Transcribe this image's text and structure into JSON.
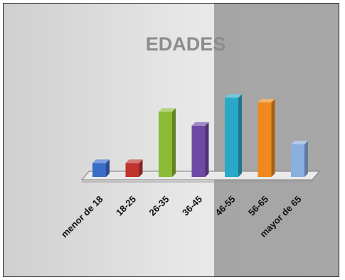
{
  "chart_data": {
    "type": "bar",
    "title": "EDADES",
    "categories": [
      "menor de 18",
      "18-25",
      "26-35",
      "36-45",
      "46-55",
      "56-65",
      "mayor de 65"
    ],
    "values": [
      3,
      3,
      14,
      11,
      17,
      16,
      7
    ],
    "colors": [
      "#3a6dc6",
      "#c0332e",
      "#8cbb36",
      "#7049a6",
      "#2ba8c7",
      "#f0881f",
      "#8aaee0"
    ],
    "ylim": [
      0,
      18
    ],
    "grid": false,
    "legend": "none"
  }
}
